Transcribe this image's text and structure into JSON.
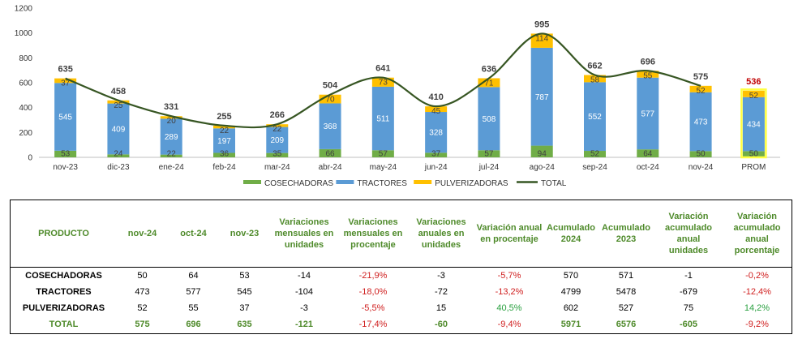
{
  "chart_data": {
    "type": "bar",
    "stacked": true,
    "categories": [
      "nov-23",
      "dic-23",
      "ene-24",
      "feb-24",
      "mar-24",
      "abr-24",
      "may-24",
      "jun-24",
      "jul-24",
      "ago-24",
      "sep-24",
      "oct-24",
      "nov-24",
      "PROM"
    ],
    "series": [
      {
        "name": "COSECHADORAS",
        "color": "#70ad47",
        "values": [
          53,
          24,
          22,
          36,
          35,
          66,
          57,
          37,
          57,
          94,
          52,
          64,
          50,
          50
        ]
      },
      {
        "name": "TRACTORES",
        "color": "#5b9bd5",
        "values": [
          545,
          409,
          289,
          197,
          209,
          368,
          511,
          328,
          508,
          787,
          552,
          577,
          473,
          434
        ]
      },
      {
        "name": "PULVERIZADORAS",
        "color": "#ffc000",
        "values": [
          37,
          25,
          20,
          22,
          22,
          70,
          73,
          45,
          71,
          114,
          58,
          55,
          52,
          52
        ]
      }
    ],
    "line": {
      "name": "TOTAL",
      "color": "#375623",
      "values": [
        635,
        458,
        331,
        255,
        266,
        504,
        641,
        410,
        636,
        995,
        662,
        696,
        575,
        536
      ]
    },
    "ylim": [
      0,
      1200
    ],
    "yticks": [
      0,
      200,
      400,
      600,
      800,
      1000,
      1200
    ],
    "highlight_color": "#c00000",
    "legend_position": "bottom"
  },
  "table": {
    "headers": [
      "PRODUCTO",
      "nov-24",
      "oct-24",
      "nov-23",
      "Variaciones mensuales en unidades",
      "Variaciones mensuales en procentaje",
      "Variaciones anuales en unidades",
      "Variación anual en procentaje",
      "Acumulado 2024",
      "Acumulado 2023",
      "Variación acumulado anual unidades",
      "Variación acumulado anual porcentaje"
    ],
    "rows": [
      {
        "cells": [
          "COSECHADORAS",
          "50",
          "64",
          "53",
          "-14",
          "-21,9%",
          "-3",
          "-5,7%",
          "570",
          "571",
          "-1",
          "-0,2%"
        ]
      },
      {
        "cells": [
          "TRACTORES",
          "473",
          "577",
          "545",
          "-104",
          "-18,0%",
          "-72",
          "-13,2%",
          "4799",
          "5478",
          "-679",
          "-12,4%"
        ]
      },
      {
        "cells": [
          "PULVERIZADORAS",
          "52",
          "55",
          "37",
          "-3",
          "-5,5%",
          "15",
          "40,5%",
          "602",
          "527",
          "75",
          "14,2%"
        ]
      },
      {
        "cells": [
          "TOTAL",
          "575",
          "696",
          "635",
          "-121",
          "-17,4%",
          "-60",
          "-9,4%",
          "5971",
          "6576",
          "-605",
          "-9,2%"
        ]
      }
    ]
  }
}
